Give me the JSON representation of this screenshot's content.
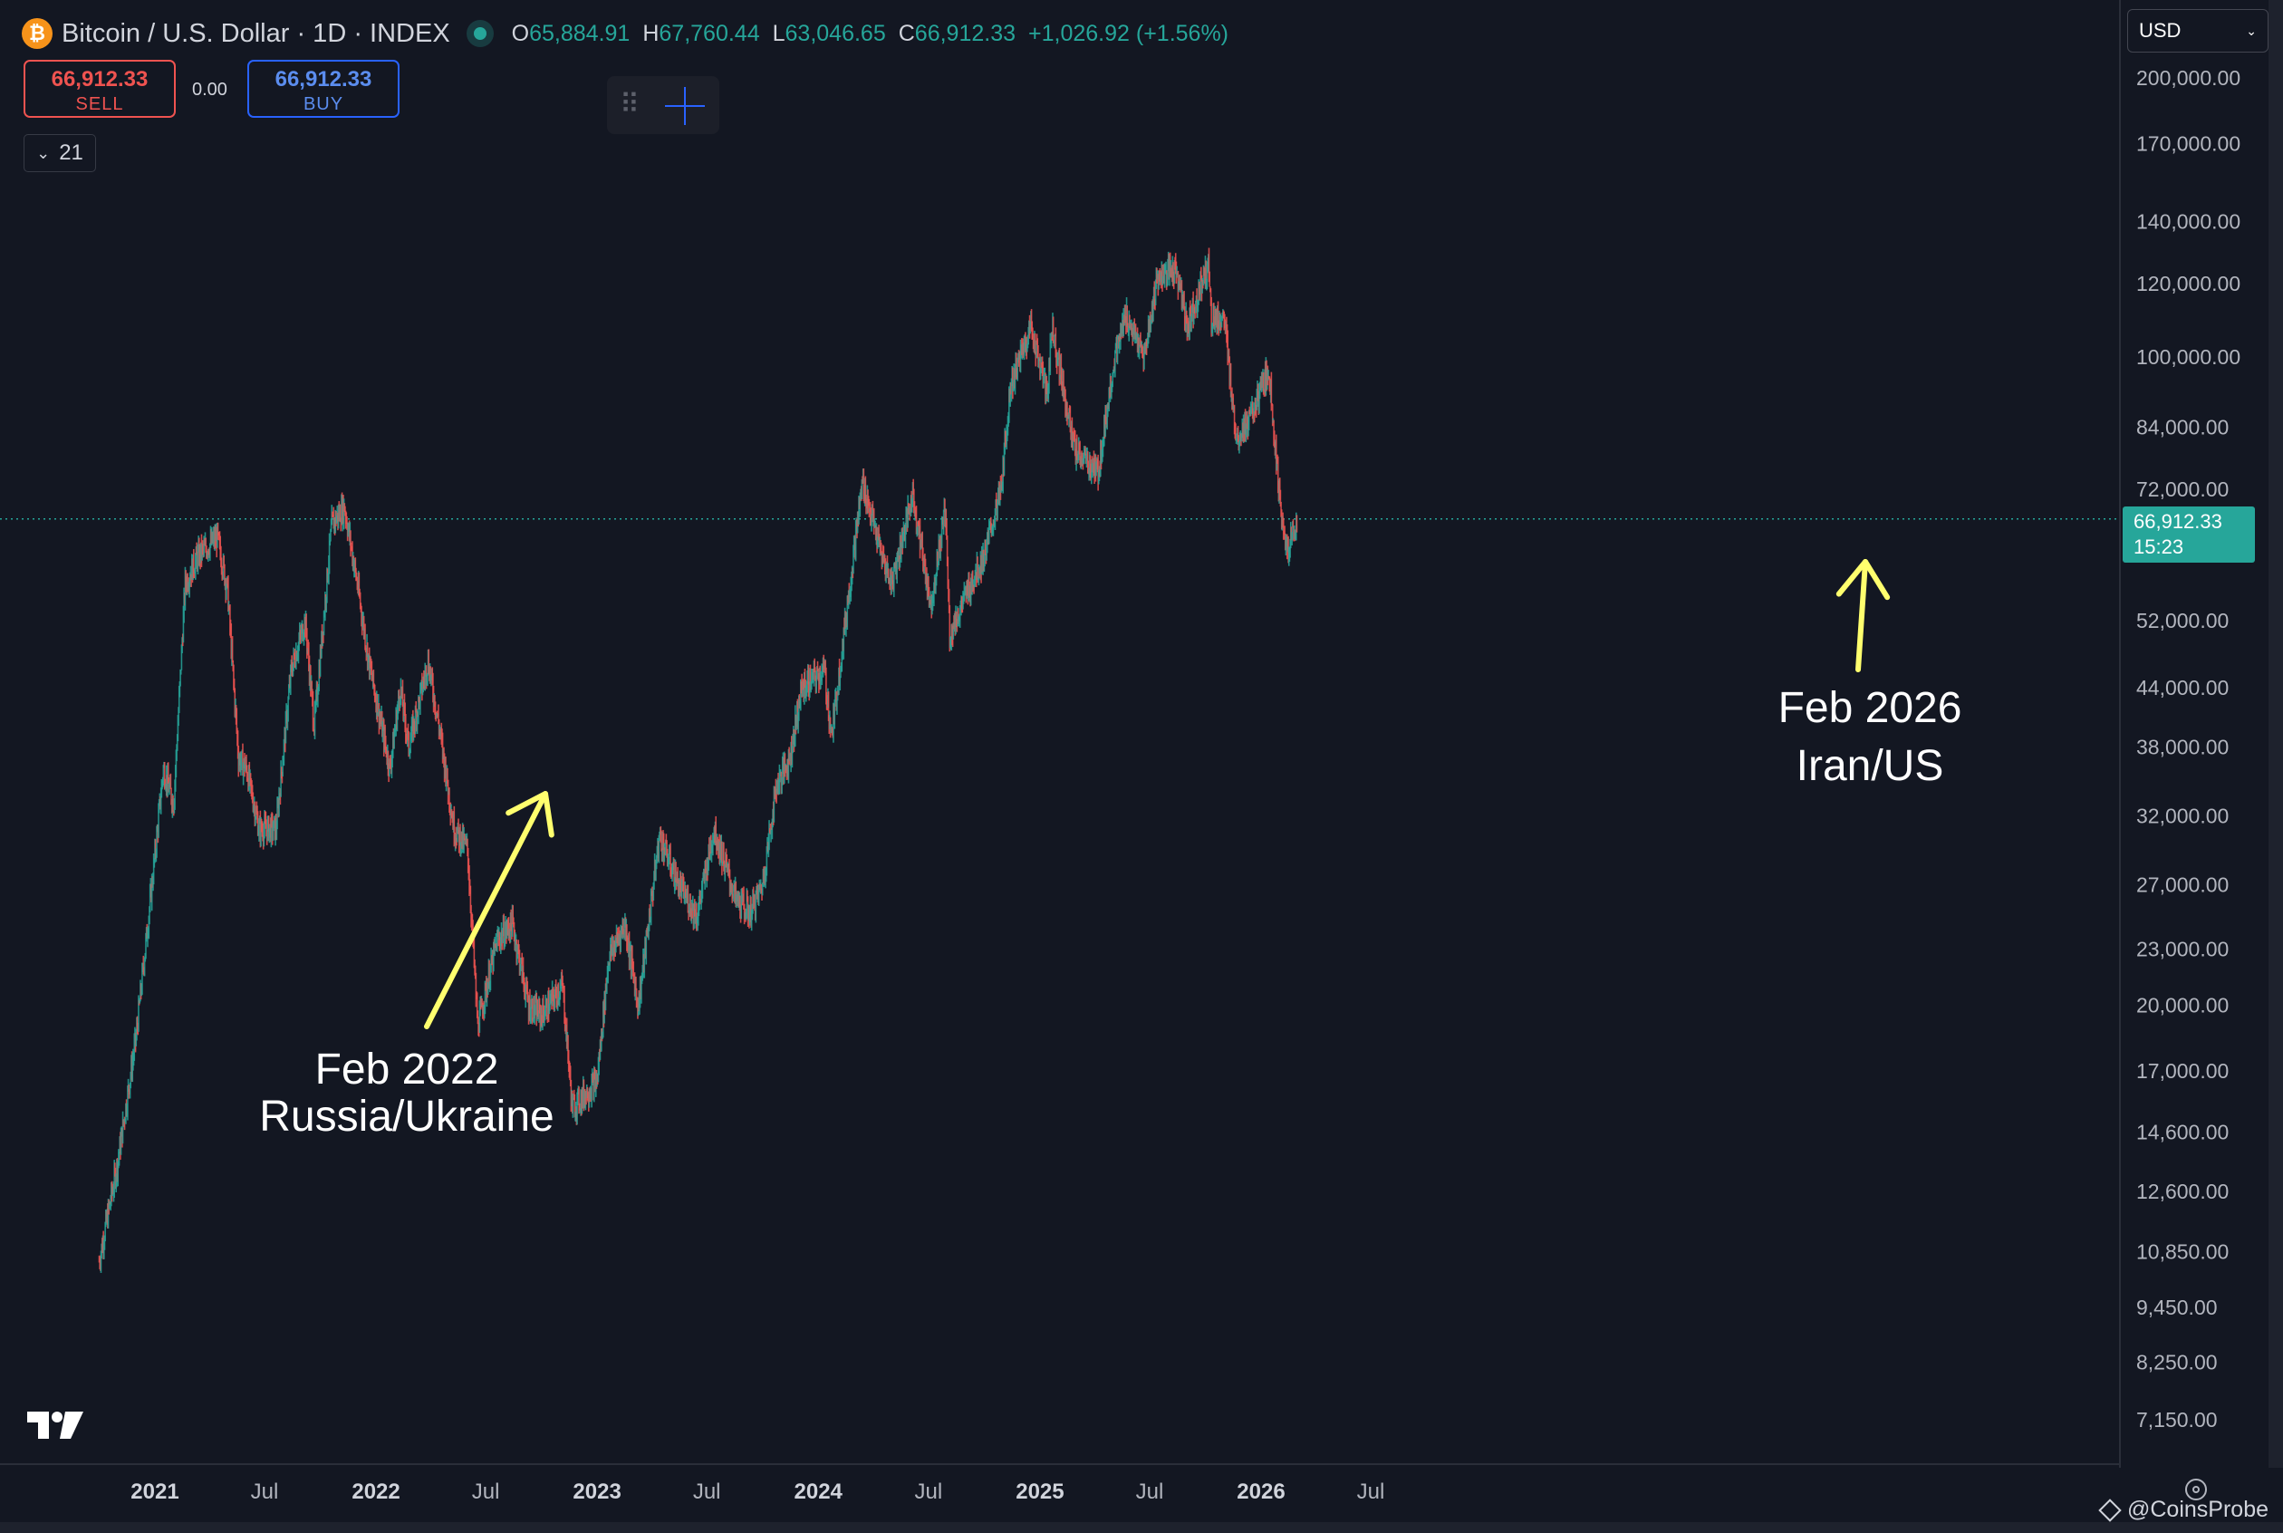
{
  "header": {
    "coin_symbol": "₿",
    "title": "Bitcoin / U.S. Dollar · 1D · INDEX",
    "ohlc": [
      {
        "key": "O",
        "value": "65,884.91"
      },
      {
        "key": "H",
        "value": "67,760.44"
      },
      {
        "key": "L",
        "value": "63,046.65"
      },
      {
        "key": "C",
        "value": "66,912.33"
      }
    ],
    "change": "+1,026.92 (+1.56%)"
  },
  "trade": {
    "sell_price": "66,912.33",
    "sell_label": "SELL",
    "spread": "0.00",
    "buy_price": "66,912.33",
    "buy_label": "BUY"
  },
  "indicators": {
    "count": "21",
    "chevron": "⌄"
  },
  "toolbar": {
    "grip": "⠿"
  },
  "currency": {
    "selected": "USD",
    "chevron": "⌄"
  },
  "current_price": {
    "price": "66,912.33",
    "countdown": "15:23"
  },
  "watermark": {
    "text": "@CoinsProbe"
  },
  "colors": {
    "background": "#131722",
    "up": "#26a69a",
    "down": "#ef5350",
    "annotation": "#ffff6e"
  },
  "chart_data": {
    "type": "line",
    "scale": "log",
    "series": [
      {
        "x": [
          "2020-10-01",
          "2020-11-01",
          "2020-12-01",
          "2021-01-01",
          "2021-01-15",
          "2021-02-01",
          "2021-02-20",
          "2021-03-13",
          "2021-04-14",
          "2021-05-01",
          "2021-05-19",
          "2021-06-01",
          "2021-06-22",
          "2021-07-20",
          "2021-08-14",
          "2021-09-06",
          "2021-09-21",
          "2021-10-20",
          "2021-11-10",
          "2021-12-01",
          "2021-12-20",
          "2022-01-24",
          "2022-02-10",
          "2022-02-24",
          "2022-03-28",
          "2022-04-15",
          "2022-05-10",
          "2022-06-01",
          "2022-06-18",
          "2022-07-20",
          "2022-08-14",
          "2022-09-10",
          "2022-10-01",
          "2022-11-05",
          "2022-11-21",
          "2023-01-01",
          "2023-01-20",
          "2023-02-16",
          "2023-03-10",
          "2023-04-14",
          "2023-05-15",
          "2023-06-15",
          "2023-07-13",
          "2023-08-18",
          "2023-09-11",
          "2023-10-01",
          "2023-10-24",
          "2023-11-15",
          "2023-12-05",
          "2024-01-11",
          "2024-01-23",
          "2024-02-15",
          "2024-03-14",
          "2024-04-15",
          "2024-05-01",
          "2024-06-05",
          "2024-07-05",
          "2024-07-29",
          "2024-08-05",
          "2024-09-06",
          "2024-10-01",
          "2024-10-29",
          "2024-11-13",
          "2024-12-17",
          "2025-01-13",
          "2025-01-21",
          "2025-02-28",
          "2025-03-11",
          "2025-04-07",
          "2025-05-01",
          "2025-05-22",
          "2025-06-22",
          "2025-07-14",
          "2025-08-14",
          "2025-09-01",
          "2025-10-06",
          "2025-10-11",
          "2025-11-01",
          "2025-11-21",
          "2025-12-15",
          "2026-01-14",
          "2026-02-05",
          "2026-02-15",
          "2026-03-01"
        ],
        "y": [
          10600,
          13600,
          18500,
          29000,
          36000,
          33000,
          57000,
          61000,
          64000,
          56000,
          37000,
          36000,
          31000,
          31000,
          46000,
          52000,
          40000,
          66000,
          69000,
          57000,
          47000,
          36000,
          44000,
          38000,
          47000,
          40000,
          31000,
          29500,
          19000,
          23500,
          24500,
          20000,
          19500,
          21000,
          15500,
          16600,
          22500,
          24500,
          20000,
          30500,
          27000,
          25000,
          31000,
          26000,
          25200,
          27000,
          34500,
          37000,
          44000,
          46000,
          39000,
          52000,
          73500,
          61000,
          57000,
          71000,
          54000,
          69000,
          50000,
          56500,
          61000,
          72000,
          93000,
          108000,
          91000,
          108000,
          79000,
          78000,
          75000,
          97000,
          111000,
          100000,
          122000,
          124000,
          108000,
          126000,
          110000,
          110000,
          82000,
          86000,
          97000,
          65000,
          62000,
          66912
        ]
      }
    ],
    "yticks": [
      "200,000.00",
      "170,000.00",
      "140,000.00",
      "120,000.00",
      "100,000.00",
      "84,000.00",
      "72,000.00",
      "52,000.00",
      "44,000.00",
      "38,000.00",
      "32,000.00",
      "27,000.00",
      "23,000.00",
      "20,000.00",
      "17,000.00",
      "14,600.00",
      "12,600.00",
      "10,850.00",
      "9,450.00",
      "8,250.00",
      "7,150.00"
    ],
    "xticks": [
      "2021",
      "Jul",
      "2022",
      "Jul",
      "2023",
      "Jul",
      "2024",
      "Jul",
      "2025",
      "Jul",
      "2026",
      "Jul"
    ],
    "annotations": [
      {
        "line1": "Feb 2022",
        "line2": "Russia/Ukraine"
      },
      {
        "line1": "Feb 2026",
        "line2": "Iran/US"
      }
    ]
  }
}
